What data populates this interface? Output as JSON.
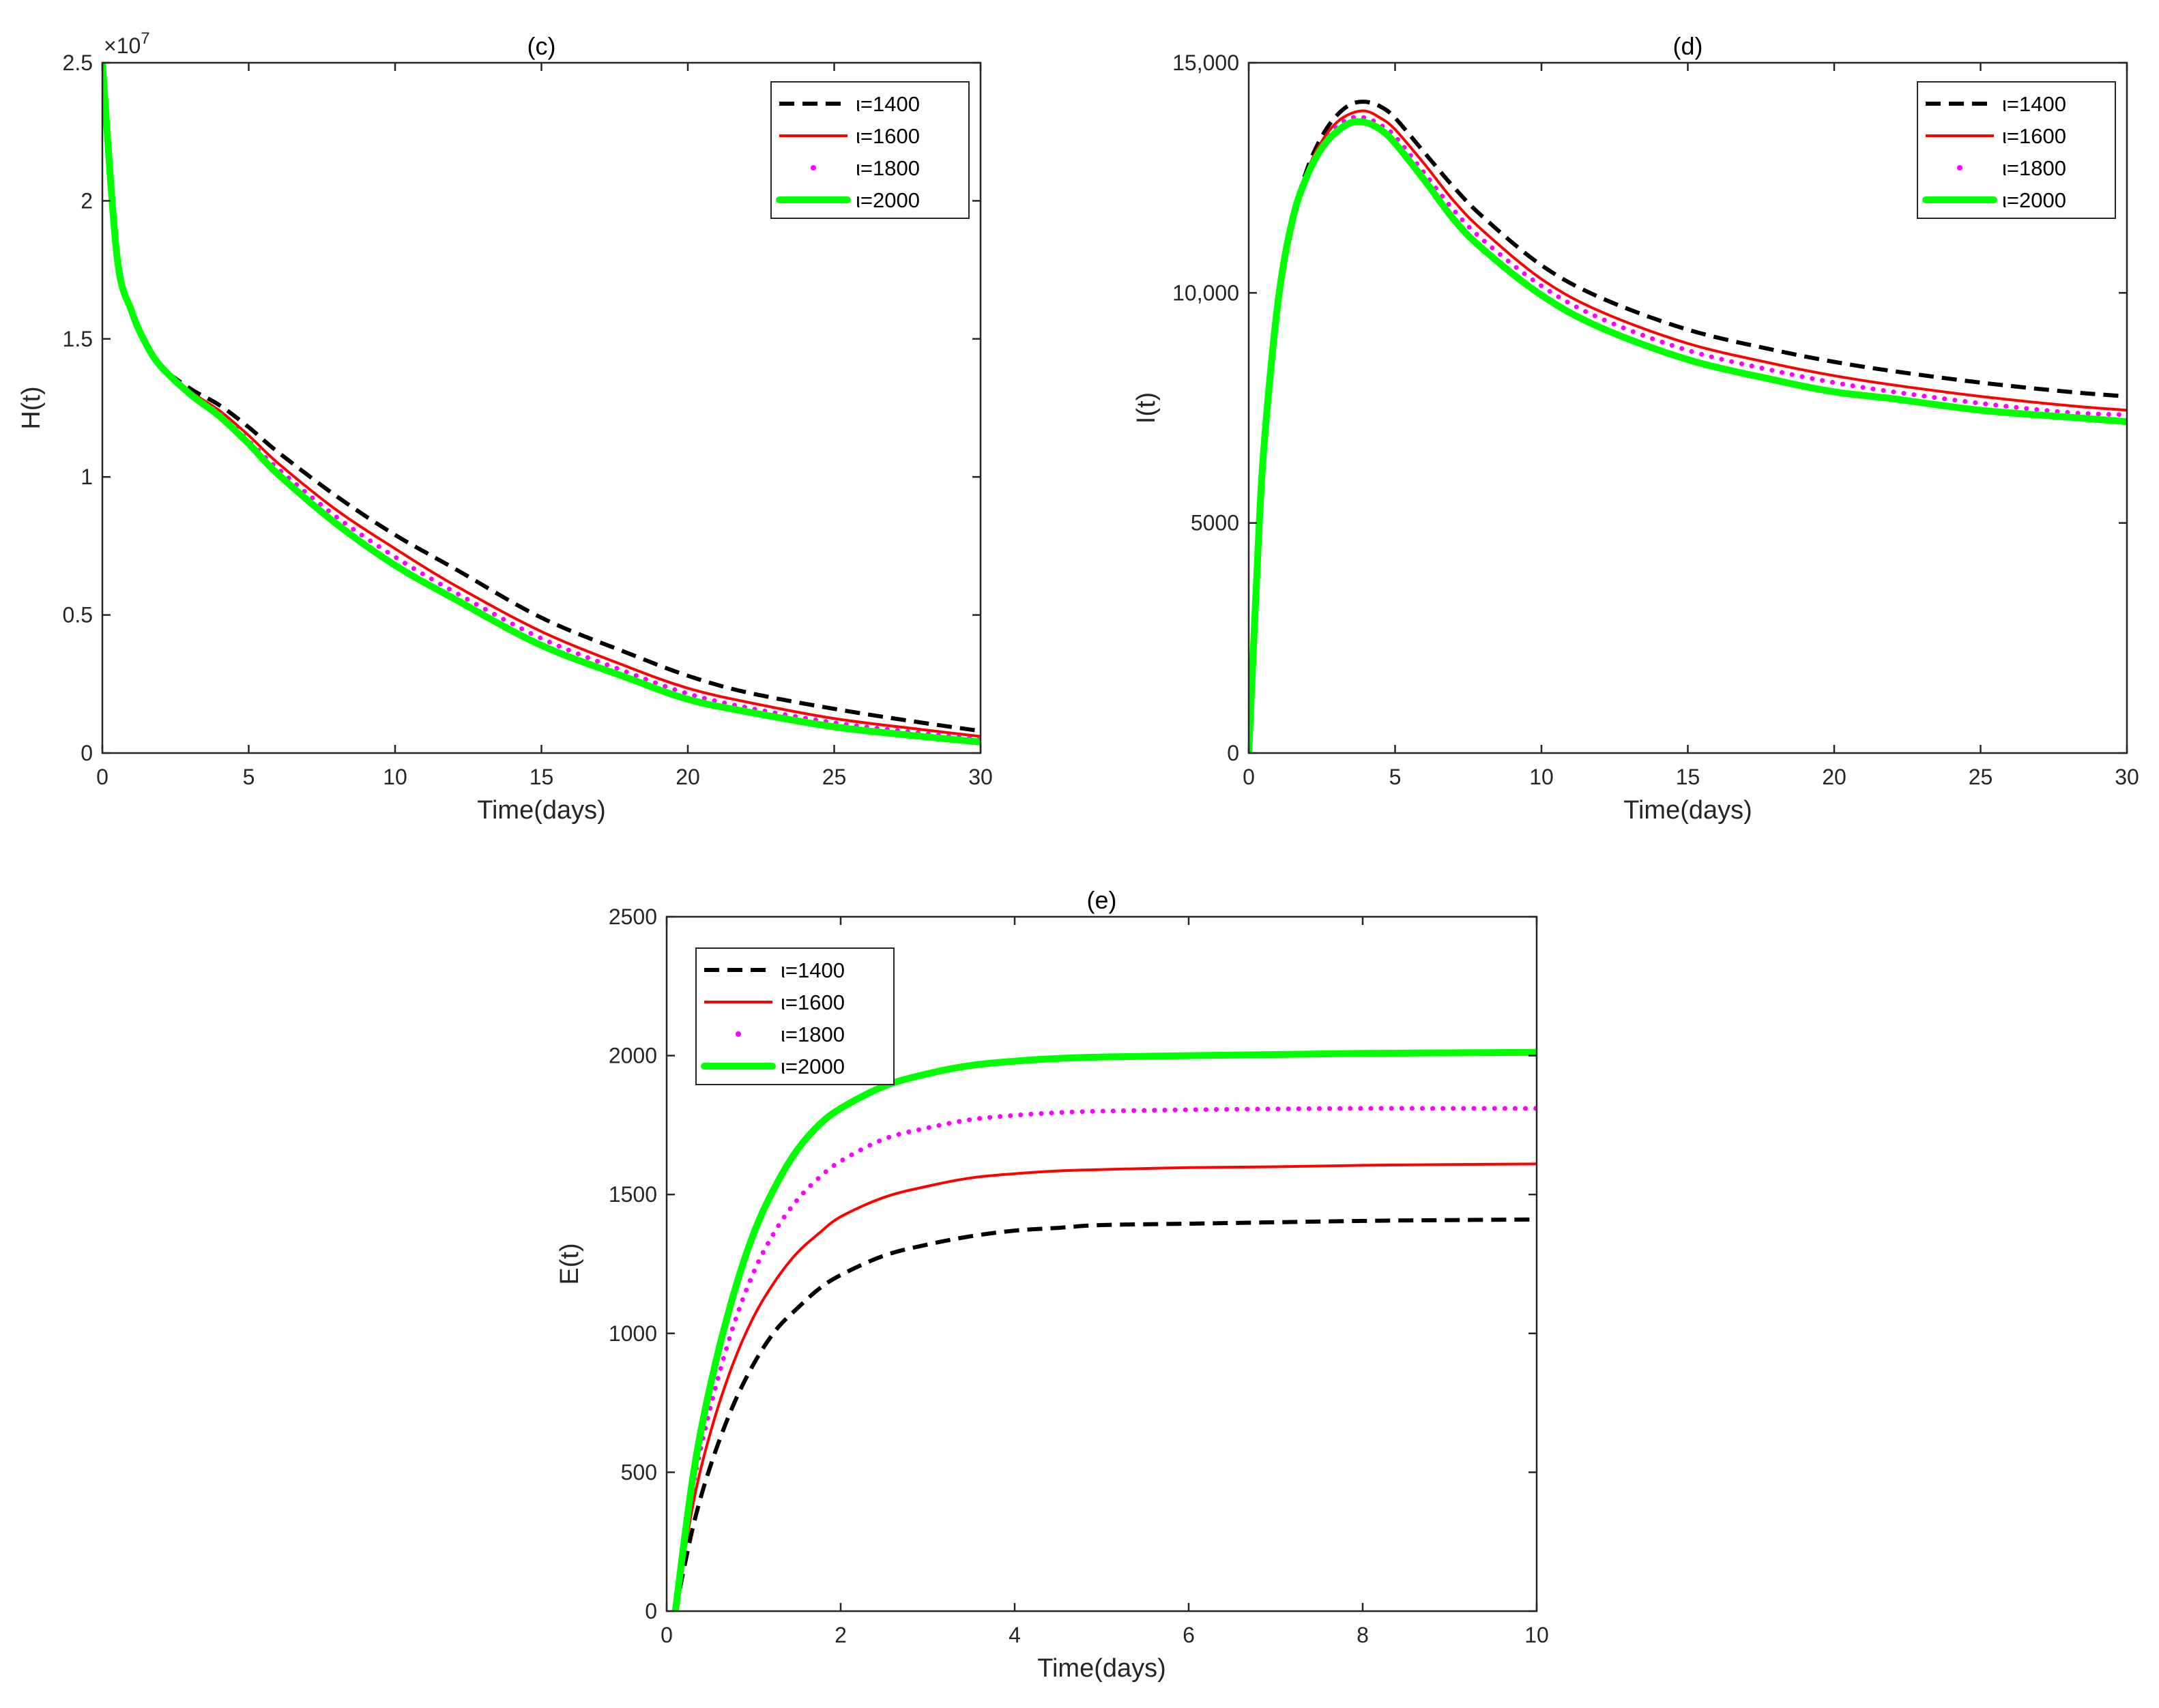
{
  "chart_data": [
    {
      "id": "c",
      "type": "line",
      "title": "(c)",
      "xlabel": "Time(days)",
      "ylabel": "H(t)",
      "xlim": [
        0,
        30
      ],
      "ylim": [
        0,
        25000000
      ],
      "xticks": [
        0,
        5,
        10,
        15,
        20,
        25,
        30
      ],
      "yticks": [
        0,
        5000000,
        10000000,
        15000000,
        20000000,
        25000000
      ],
      "ytick_labels": [
        "0",
        "0.5",
        "1",
        "1.5",
        "2",
        "2.5"
      ],
      "y_exponent_label": "×10",
      "y_exponent_power": "7",
      "legend_position": "top-right",
      "x": [
        0,
        0.5,
        1,
        1.5,
        2,
        3,
        4,
        5,
        6,
        8,
        10,
        12,
        15,
        18,
        20,
        22,
        25,
        28,
        30
      ],
      "series": [
        {
          "name": "ι=1400",
          "values": [
            25000000,
            18000000,
            16000000,
            14800000,
            14000000,
            13200000,
            12600000,
            11800000,
            10900000,
            9300000,
            7900000,
            6700000,
            4900000,
            3600000,
            2800000,
            2200000,
            1600000,
            1100000,
            800000
          ]
        },
        {
          "name": "ι=1600",
          "values": [
            25000000,
            18000000,
            16000000,
            14800000,
            14000000,
            13100000,
            12400000,
            11500000,
            10500000,
            8800000,
            7400000,
            6100000,
            4400000,
            3100000,
            2350000,
            1850000,
            1250000,
            850000,
            600000
          ]
        },
        {
          "name": "ι=1800",
          "values": [
            25000000,
            18000000,
            16000000,
            14800000,
            14000000,
            13050000,
            12300000,
            11300000,
            10300000,
            8550000,
            7100000,
            5850000,
            4150000,
            2900000,
            2150000,
            1650000,
            1100000,
            720000,
            500000
          ]
        },
        {
          "name": "ι=2000",
          "values": [
            25000000,
            18000000,
            16000000,
            14800000,
            14000000,
            13000000,
            12200000,
            11200000,
            10100000,
            8300000,
            6800000,
            5600000,
            3900000,
            2700000,
            1950000,
            1500000,
            950000,
            600000,
            400000
          ]
        }
      ]
    },
    {
      "id": "d",
      "type": "line",
      "title": "(d)",
      "xlabel": "Time(days)",
      "ylabel": "I(t)",
      "xlim": [
        0,
        30
      ],
      "ylim": [
        0,
        15000
      ],
      "xticks": [
        0,
        5,
        10,
        15,
        20,
        25,
        30
      ],
      "yticks": [
        0,
        5000,
        10000,
        15000
      ],
      "ytick_labels": [
        "0",
        "5000",
        "10,000",
        "15,000"
      ],
      "legend_position": "top-right",
      "x": [
        0,
        0.25,
        0.5,
        1,
        1.5,
        2,
        2.5,
        3,
        3.5,
        4,
        4.5,
        5,
        6,
        7,
        8,
        10,
        12,
        15,
        18,
        20,
        22,
        25,
        28,
        30
      ],
      "series": [
        {
          "name": "ι=1400",
          "values": [
            0,
            3500,
            6500,
            9800,
            11600,
            12700,
            13400,
            13850,
            14100,
            14150,
            14050,
            13800,
            13050,
            12300,
            11650,
            10600,
            9900,
            9200,
            8750,
            8500,
            8300,
            8050,
            7850,
            7750
          ]
        },
        {
          "name": "ι=1600",
          "values": [
            0,
            3500,
            6500,
            9800,
            11600,
            12650,
            13300,
            13700,
            13900,
            13950,
            13800,
            13550,
            12800,
            12000,
            11350,
            10300,
            9600,
            8900,
            8450,
            8200,
            8000,
            7750,
            7550,
            7450
          ]
        },
        {
          "name": "ι=1800",
          "values": [
            0,
            3500,
            6500,
            9800,
            11600,
            12600,
            13200,
            13600,
            13800,
            13800,
            13650,
            13400,
            12600,
            11800,
            11150,
            10150,
            9450,
            8750,
            8300,
            8050,
            7850,
            7600,
            7400,
            7350
          ]
        },
        {
          "name": "ι=2000",
          "values": [
            0,
            3500,
            6500,
            9800,
            11600,
            12550,
            13150,
            13500,
            13700,
            13700,
            13550,
            13250,
            12450,
            11600,
            10950,
            9950,
            9250,
            8550,
            8100,
            7850,
            7700,
            7450,
            7300,
            7200
          ]
        }
      ]
    },
    {
      "id": "e",
      "type": "line",
      "title": "(e)",
      "xlabel": "Time(days)",
      "ylabel": "E(t)",
      "xlim": [
        0,
        10
      ],
      "ylim": [
        0,
        2500
      ],
      "xticks": [
        0,
        2,
        4,
        6,
        8,
        10
      ],
      "yticks": [
        0,
        500,
        1000,
        1500,
        2000,
        2500
      ],
      "ytick_labels": [
        "0",
        "500",
        "1000",
        "1500",
        "2000",
        "2500"
      ],
      "legend_position": "top-left",
      "x": [
        0.1,
        0.3,
        0.5,
        0.75,
        1,
        1.25,
        1.5,
        1.75,
        2,
        2.5,
        3,
        3.5,
        4,
        4.5,
        5,
        6,
        7,
        8,
        9,
        10
      ],
      "series": [
        {
          "name": "ι=1400",
          "values": [
            0,
            300,
            520,
            730,
            890,
            1010,
            1090,
            1160,
            1210,
            1280,
            1320,
            1350,
            1370,
            1380,
            1390,
            1395,
            1400,
            1405,
            1408,
            1410
          ]
        },
        {
          "name": "ι=1600",
          "values": [
            0,
            380,
            640,
            880,
            1060,
            1190,
            1290,
            1360,
            1420,
            1490,
            1530,
            1560,
            1575,
            1585,
            1590,
            1597,
            1600,
            1605,
            1608,
            1610
          ]
        },
        {
          "name": "ι=1800",
          "values": [
            0,
            440,
            730,
            1010,
            1220,
            1370,
            1480,
            1560,
            1620,
            1700,
            1740,
            1770,
            1785,
            1795,
            1800,
            1805,
            1808,
            1810,
            1810,
            1810
          ]
        },
        {
          "name": "ι=2000",
          "values": [
            0,
            480,
            810,
            1120,
            1360,
            1530,
            1660,
            1750,
            1810,
            1890,
            1935,
            1965,
            1980,
            1990,
            1995,
            2000,
            2004,
            2008,
            2010,
            2012
          ]
        }
      ]
    }
  ],
  "series_styles": [
    {
      "color": "#000000",
      "style": "dashed"
    },
    {
      "color": "#ff0000",
      "style": "solid"
    },
    {
      "color": "#ff00ff",
      "style": "dotted"
    },
    {
      "color": "#00ff00",
      "style": "thick"
    }
  ]
}
